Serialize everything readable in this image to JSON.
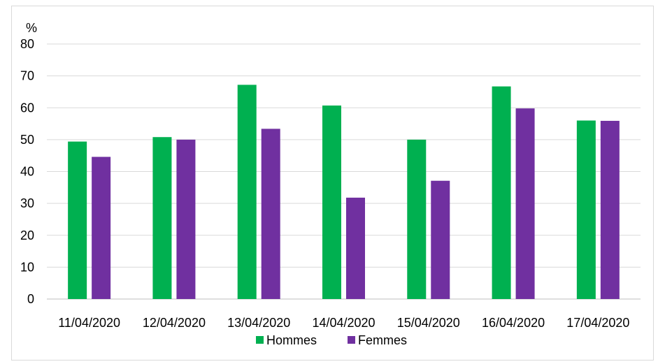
{
  "chart_data": {
    "type": "bar",
    "unit_label": "%",
    "categories": [
      "11/04/2020",
      "12/04/2020",
      "13/04/2020",
      "14/04/2020",
      "15/04/2020",
      "16/04/2020",
      "17/04/2020"
    ],
    "series": [
      {
        "name": "Hommes",
        "color": "#00b050",
        "values": [
          49.4,
          50.8,
          67.2,
          60.7,
          50.0,
          66.7,
          56.0
        ]
      },
      {
        "name": "Femmes",
        "color": "#7030a0",
        "values": [
          44.6,
          50.0,
          53.4,
          31.8,
          37.1,
          59.8,
          55.9
        ]
      }
    ],
    "ylim": [
      0,
      80
    ],
    "yticks": [
      0,
      10,
      20,
      30,
      40,
      50,
      60,
      70,
      80
    ],
    "grid": true,
    "legend_position": "bottom"
  }
}
